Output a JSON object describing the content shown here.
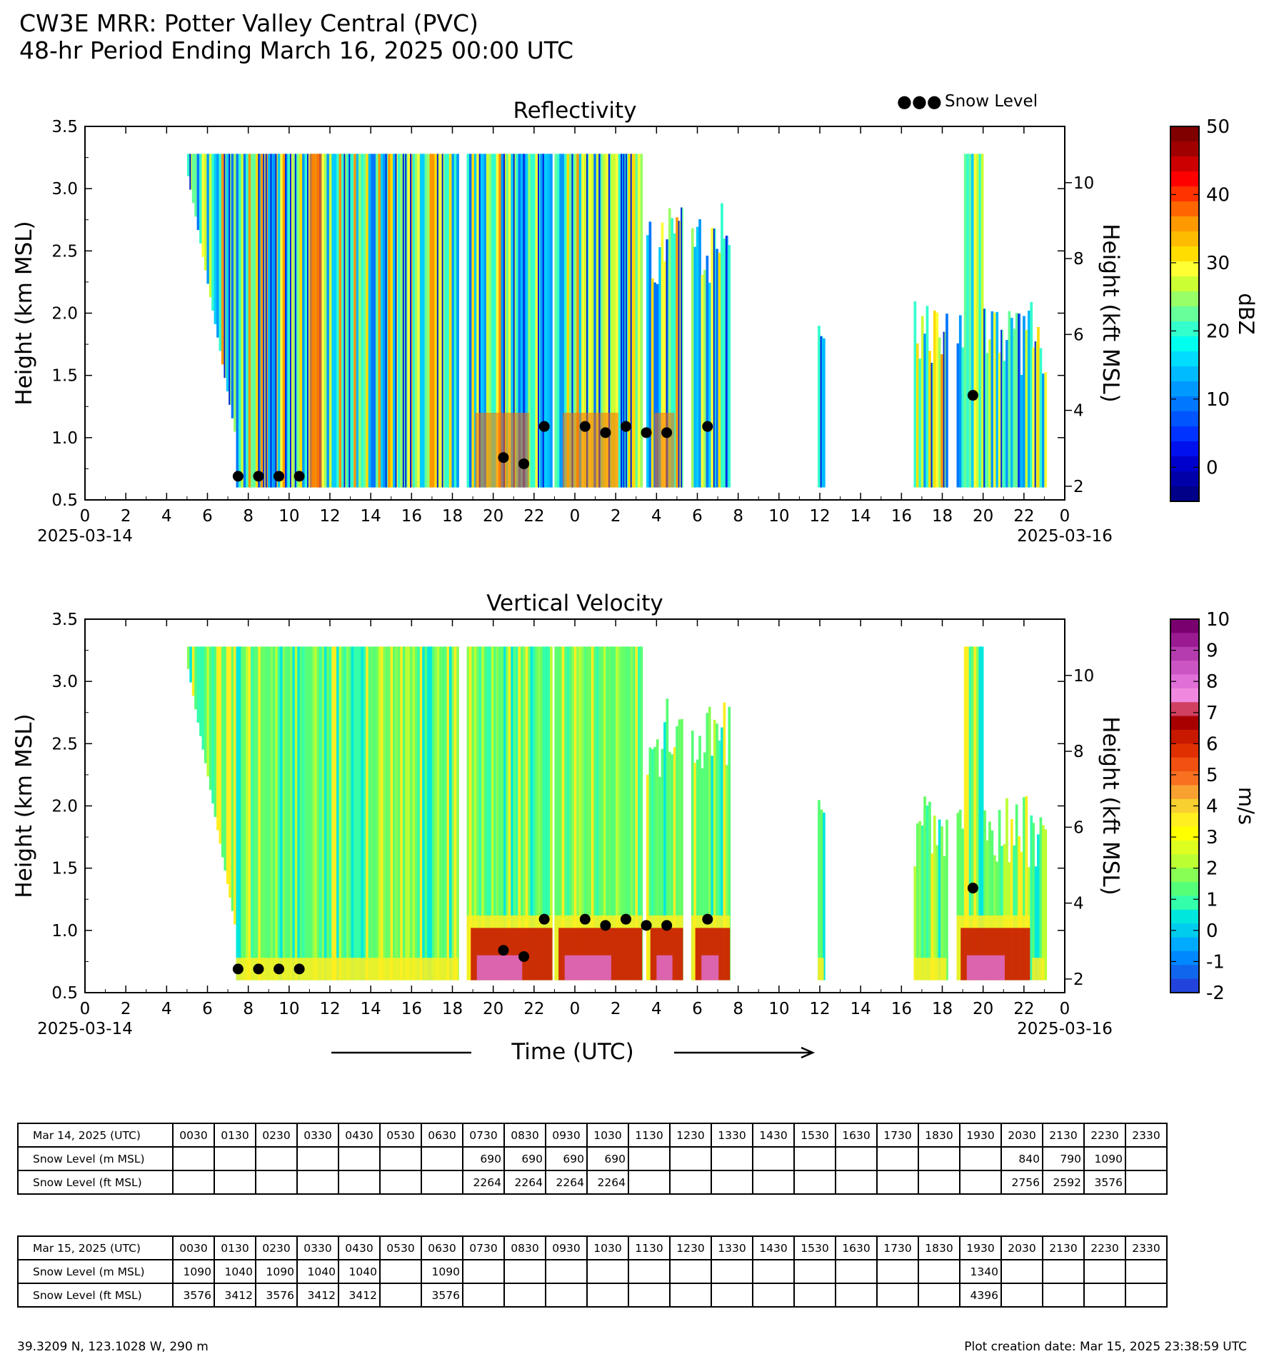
{
  "header": {
    "line1": "CW3E MRR: Potter Valley Central (PVC)",
    "line2": "48-hr Period Ending March 16, 2025 00:00 UTC"
  },
  "legend": {
    "label": "Snow Level",
    "marker": "●●●"
  },
  "axes": {
    "ylabel_left": "Height (km MSL)",
    "ylabel_right": "Height (kft MSL)",
    "xlabel": "Time (UTC)",
    "date_start": "2025-03-14",
    "date_end": "2025-03-16",
    "y_ticks_km": [
      "0.5",
      "1.0",
      "1.5",
      "2.0",
      "2.5",
      "3.0",
      "3.5"
    ],
    "y_ticks_kft": [
      "2",
      "4",
      "6",
      "8",
      "10"
    ],
    "x_ticks": [
      "0",
      "2",
      "4",
      "6",
      "8",
      "10",
      "12",
      "14",
      "16",
      "18",
      "20",
      "22",
      "0",
      "2",
      "4",
      "6",
      "8",
      "10",
      "12",
      "14",
      "16",
      "18",
      "20",
      "22",
      "0"
    ]
  },
  "panels": {
    "reflectivity": {
      "title": "Reflectivity",
      "cbar_label": "dBZ",
      "cbar_ticks": [
        "50",
        "40",
        "30",
        "20",
        "10",
        "0"
      ],
      "cbar_colors": [
        "#800000",
        "#a00000",
        "#cc0000",
        "#ff0000",
        "#ff3300",
        "#ff6600",
        "#ff9900",
        "#ffbb00",
        "#ffdd00",
        "#ffff33",
        "#ccff33",
        "#99ff66",
        "#66ff99",
        "#33ffcc",
        "#00ffee",
        "#00ddff",
        "#00bbff",
        "#0099ff",
        "#0077ff",
        "#0055ff",
        "#0033ff",
        "#0011ee",
        "#0000cc",
        "#0000aa",
        "#000088"
      ]
    },
    "velocity": {
      "title": "Vertical Velocity",
      "cbar_label": "m/s",
      "cbar_ticks": [
        "10",
        "9",
        "8",
        "7",
        "6",
        "5",
        "4",
        "3",
        "2",
        "1",
        "0",
        "-1",
        "-2"
      ],
      "cbar_colors": [
        "#7a0070",
        "#9a1a92",
        "#b43cae",
        "#cc55c4",
        "#e070d8",
        "#f088e0",
        "#d04060",
        "#a80000",
        "#c81800",
        "#e03000",
        "#f05010",
        "#f87020",
        "#f8a030",
        "#f8d030",
        "#ffee20",
        "#ffff00",
        "#ddff20",
        "#bbff33",
        "#88ff55",
        "#55ff77",
        "#33ffaa",
        "#00e8dd",
        "#00ccee",
        "#00aaff",
        "#0088ff",
        "#1166ee",
        "#2244dd"
      ]
    }
  },
  "chart_data": [
    {
      "type": "heatmap",
      "title": "Reflectivity",
      "xlabel": "",
      "ylabel": "Height (km MSL)",
      "ylabel_right": "Height (kft MSL)",
      "x_range_hours": [
        0,
        48
      ],
      "ylim": [
        0.5,
        3.5
      ],
      "colorbar": {
        "label": "dBZ",
        "range": [
          -5,
          50
        ]
      },
      "echo_segments_hours": [
        [
          5.0,
          18.3
        ],
        [
          18.7,
          22.9
        ],
        [
          23.0,
          27.3
        ],
        [
          27.5,
          29.3
        ],
        [
          29.7,
          31.6
        ],
        [
          35.9,
          36.2
        ],
        [
          40.6,
          42.2
        ],
        [
          42.7,
          46.3
        ],
        [
          46.4,
          47.0
        ]
      ],
      "snow_level": {
        "hours": [
          7.5,
          8.5,
          9.5,
          10.5,
          20.5,
          21.5,
          22.5,
          24.5,
          25.5,
          26.5,
          27.5,
          28.5,
          30.5,
          43.5
        ],
        "km": [
          0.69,
          0.69,
          0.69,
          0.69,
          0.84,
          0.79,
          1.09,
          1.09,
          1.04,
          1.09,
          1.04,
          1.04,
          1.09,
          1.34
        ]
      }
    },
    {
      "type": "heatmap",
      "title": "Vertical Velocity",
      "xlabel": "Time (UTC)",
      "ylabel": "Height (km MSL)",
      "ylabel_right": "Height (kft MSL)",
      "x_range_hours": [
        0,
        48
      ],
      "ylim": [
        0.5,
        3.5
      ],
      "colorbar": {
        "label": "m/s",
        "range": [
          -2,
          10
        ]
      },
      "echo_segments_hours": [
        [
          5.0,
          18.3
        ],
        [
          18.7,
          22.9
        ],
        [
          23.0,
          27.3
        ],
        [
          27.5,
          29.3
        ],
        [
          29.7,
          31.6
        ],
        [
          35.9,
          36.2
        ],
        [
          40.6,
          42.2
        ],
        [
          42.7,
          46.3
        ],
        [
          46.4,
          47.0
        ]
      ],
      "snow_level": {
        "hours": [
          7.5,
          8.5,
          9.5,
          10.5,
          20.5,
          21.5,
          22.5,
          24.5,
          25.5,
          26.5,
          27.5,
          28.5,
          30.5,
          43.5
        ],
        "km": [
          0.69,
          0.69,
          0.69,
          0.69,
          0.84,
          0.79,
          1.09,
          1.09,
          1.04,
          1.09,
          1.04,
          1.04,
          1.09,
          1.34
        ]
      }
    }
  ],
  "tables": [
    {
      "date_label": "Mar 14, 2025 (UTC)",
      "times": [
        "0030",
        "0130",
        "0230",
        "0330",
        "0430",
        "0530",
        "0630",
        "0730",
        "0830",
        "0930",
        "1030",
        "1130",
        "1230",
        "1330",
        "1430",
        "1530",
        "1630",
        "1730",
        "1830",
        "1930",
        "2030",
        "2130",
        "2230",
        "2330"
      ],
      "row_m_label": "Snow Level (m MSL)",
      "row_ft_label": "Snow Level (ft MSL)",
      "m": [
        "",
        "",
        "",
        "",
        "",
        "",
        "",
        "690",
        "690",
        "690",
        "690",
        "",
        "",
        "",
        "",
        "",
        "",
        "",
        "",
        "",
        "840",
        "790",
        "1090",
        ""
      ],
      "ft": [
        "",
        "",
        "",
        "",
        "",
        "",
        "",
        "2264",
        "2264",
        "2264",
        "2264",
        "",
        "",
        "",
        "",
        "",
        "",
        "",
        "",
        "",
        "2756",
        "2592",
        "3576",
        ""
      ]
    },
    {
      "date_label": "Mar 15, 2025 (UTC)",
      "times": [
        "0030",
        "0130",
        "0230",
        "0330",
        "0430",
        "0530",
        "0630",
        "0730",
        "0830",
        "0930",
        "1030",
        "1130",
        "1230",
        "1330",
        "1430",
        "1530",
        "1630",
        "1730",
        "1830",
        "1930",
        "2030",
        "2130",
        "2230",
        "2330"
      ],
      "row_m_label": "Snow Level (m MSL)",
      "row_ft_label": "Snow Level (ft MSL)",
      "m": [
        "1090",
        "1040",
        "1090",
        "1040",
        "1040",
        "",
        "1090",
        "",
        "",
        "",
        "",
        "",
        "",
        "",
        "",
        "",
        "",
        "",
        "",
        "1340",
        "",
        "",
        "",
        ""
      ],
      "ft": [
        "3576",
        "3412",
        "3576",
        "3412",
        "3412",
        "",
        "3576",
        "",
        "",
        "",
        "",
        "",
        "",
        "",
        "",
        "",
        "",
        "",
        "",
        "4396",
        "",
        "",
        "",
        ""
      ]
    }
  ],
  "footer": {
    "location": "39.3209 N, 123.1028 W, 290 m",
    "created": "Plot creation date: Mar 15, 2025 23:38:59 UTC"
  }
}
